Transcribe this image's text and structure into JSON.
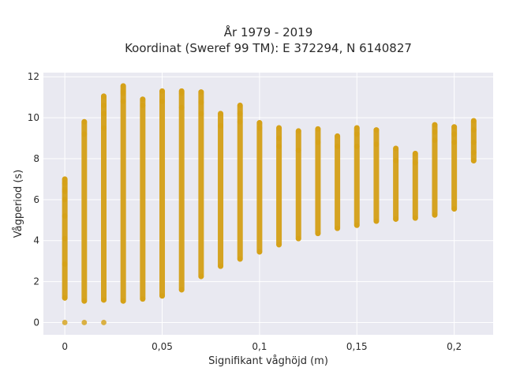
{
  "chart_data": {
    "type": "scatter",
    "title_lines": [
      "År 1979 - 2019",
      "Koordinat (Sweref 99 TM): E 372294, N 6140827"
    ],
    "xlabel": "Signifikant våghöjd (m)",
    "ylabel": "Vågperiod (s)",
    "xlim": [
      -0.011,
      0.22
    ],
    "ylim": [
      -0.6,
      12.2
    ],
    "x_ticks": [
      0,
      0.05,
      0.1,
      0.15,
      0.2
    ],
    "x_tick_labels": [
      "0",
      "0,05",
      "0,1",
      "0,15",
      "0,2"
    ],
    "y_ticks": [
      0,
      2,
      4,
      6,
      8,
      10,
      12
    ],
    "y_tick_labels": [
      "0",
      "2",
      "4",
      "6",
      "8",
      "10",
      "12"
    ],
    "grid": true,
    "marker_color": "#D4A017",
    "plot_background": "#E9E9F1",
    "series": [
      {
        "x": [
          0,
          0,
          0,
          0,
          0,
          0,
          0,
          0,
          0,
          0
        ],
        "y": [
          0,
          1.2,
          2.85,
          4.1,
          5.2,
          6.0,
          6.4,
          6.5,
          6.8,
          7.0
        ]
      },
      {
        "x": [
          0.01,
          0.01,
          0.01,
          0.01
        ],
        "y": [
          0,
          1.05,
          9.2,
          9.8
        ]
      },
      {
        "x": [
          0.02,
          0.02,
          0.02,
          0.02,
          0.02,
          0.02
        ],
        "y": [
          0,
          1.1,
          9.5,
          10.2,
          10.6,
          11.05
        ]
      },
      {
        "x": [
          0.03,
          0.03,
          0.03,
          0.03,
          0.03
        ],
        "y": [
          1.05,
          10.8,
          11.2,
          11.3,
          11.55
        ]
      },
      {
        "x": [
          0.04,
          0.04,
          0.04
        ],
        "y": [
          1.15,
          10.6,
          10.9
        ]
      },
      {
        "x": [
          0.05,
          0.05,
          0.05
        ],
        "y": [
          1.3,
          10.8,
          11.3
        ]
      },
      {
        "x": [
          0.06,
          0.06,
          0.06,
          0.06
        ],
        "y": [
          1.6,
          10.5,
          11.2,
          11.3
        ]
      },
      {
        "x": [
          0.07,
          0.07,
          0.07,
          0.07
        ],
        "y": [
          2.25,
          10.2,
          10.75,
          11.25
        ]
      },
      {
        "x": [
          0.08,
          0.08,
          0.08
        ],
        "y": [
          2.75,
          9.6,
          10.2
        ]
      },
      {
        "x": [
          0.09,
          0.09,
          0.09,
          0.09
        ],
        "y": [
          3.1,
          9.8,
          10.2,
          10.6
        ]
      },
      {
        "x": [
          0.1,
          0.1,
          0.1
        ],
        "y": [
          3.45,
          9.5,
          9.75
        ]
      },
      {
        "x": [
          0.11,
          0.11,
          0.11,
          0.11
        ],
        "y": [
          3.8,
          8.6,
          9.0,
          9.5
        ]
      },
      {
        "x": [
          0.12,
          0.12,
          0.12
        ],
        "y": [
          4.1,
          8.4,
          9.35
        ]
      },
      {
        "x": [
          0.13,
          0.13,
          0.13
        ],
        "y": [
          4.35,
          8.8,
          9.45
        ]
      },
      {
        "x": [
          0.14,
          0.14,
          0.14
        ],
        "y": [
          4.6,
          8.6,
          9.1
        ]
      },
      {
        "x": [
          0.15,
          0.15,
          0.15,
          0.15
        ],
        "y": [
          4.75,
          8.6,
          9.2,
          9.5
        ]
      },
      {
        "x": [
          0.16,
          0.16,
          0.16
        ],
        "y": [
          4.95,
          8.7,
          9.4
        ]
      },
      {
        "x": [
          0.17,
          0.17,
          0.17
        ],
        "y": [
          5.05,
          7.9,
          8.5
        ]
      },
      {
        "x": [
          0.18,
          0.18,
          0.18
        ],
        "y": [
          5.1,
          7.8,
          8.25
        ]
      },
      {
        "x": [
          0.19,
          0.19,
          0.19,
          0.19
        ],
        "y": [
          5.25,
          8.9,
          9.3,
          9.65
        ]
      },
      {
        "x": [
          0.2,
          0.2,
          0.2,
          0.2
        ],
        "y": [
          5.55,
          8.8,
          9.2,
          9.55
        ]
      },
      {
        "x": [
          0.21,
          0.21,
          0.21,
          0.21,
          0.21
        ],
        "y": [
          7.9,
          8.3,
          8.8,
          9.4,
          9.85
        ]
      }
    ]
  }
}
